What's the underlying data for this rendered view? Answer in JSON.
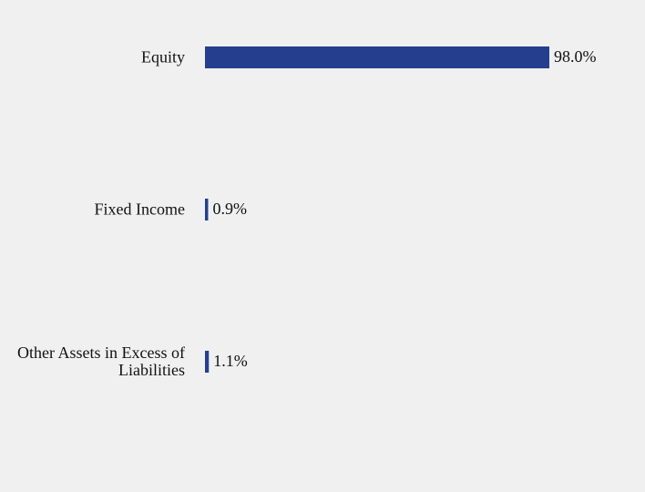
{
  "chart_data": {
    "type": "bar",
    "orientation": "horizontal",
    "categories": [
      "Equity",
      "Fixed Income",
      "Other Assets in Excess of Liabilities"
    ],
    "values": [
      98.0,
      0.9,
      1.1
    ],
    "value_labels": [
      "98.0%",
      "0.9%",
      "1.1%"
    ],
    "color": "#253f8e"
  }
}
